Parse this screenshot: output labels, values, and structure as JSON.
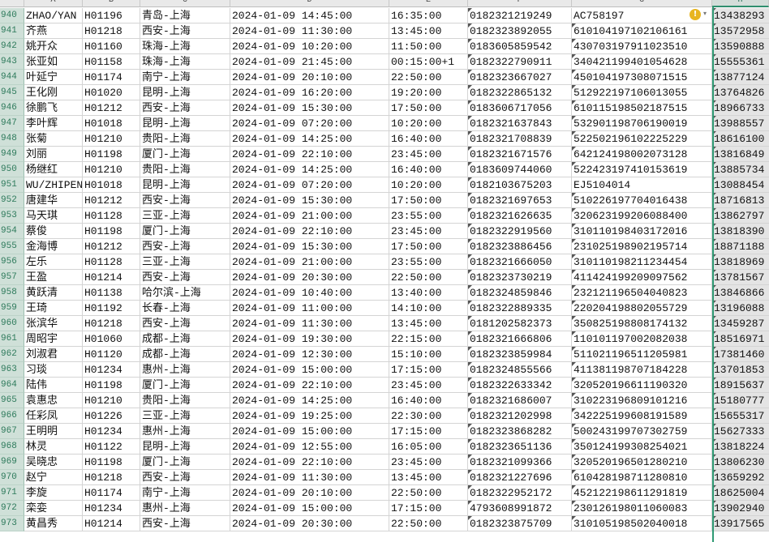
{
  "columns": [
    "A",
    "B",
    "C",
    "D",
    "E",
    "F",
    "G",
    "H"
  ],
  "selected_column": "H",
  "rows": [
    {
      "n": "940",
      "a": "ZHAO/YAN",
      "b": "H01196",
      "c": "青岛-上海",
      "d": "2024-01-09 14:45:00",
      "e": "16:35:00",
      "f": "0182321219249",
      "g": "AC758197",
      "h": "13438293"
    },
    {
      "n": "941",
      "a": "齐燕",
      "b": "H01218",
      "c": "西安-上海",
      "d": "2024-01-09 11:30:00",
      "e": "13:45:00",
      "f": "0182323892055",
      "g": "610104197102106161",
      "h": "13572958"
    },
    {
      "n": "942",
      "a": "姚开众",
      "b": "H01160",
      "c": "珠海-上海",
      "d": "2024-01-09 10:20:00",
      "e": "11:50:00",
      "f": "0183605859542",
      "g": "430703197911023510",
      "h": "13590888"
    },
    {
      "n": "943",
      "a": "张亚如",
      "b": "H01158",
      "c": "珠海-上海",
      "d": "2024-01-09 21:45:00",
      "e": "00:15:00+1",
      "f": "0182322790911",
      "g": "340421199401054628",
      "h": "15555361"
    },
    {
      "n": "944",
      "a": "叶延宁",
      "b": "H01174",
      "c": "南宁-上海",
      "d": "2024-01-09 20:10:00",
      "e": "22:50:00",
      "f": "0182323667027",
      "g": "450104197308071515",
      "h": "13877124"
    },
    {
      "n": "945",
      "a": "王化刚",
      "b": "H01020",
      "c": "昆明-上海",
      "d": "2024-01-09 16:20:00",
      "e": "19:20:00",
      "f": "0182322865132",
      "g": "512922197106013055",
      "h": "13764826"
    },
    {
      "n": "946",
      "a": "徐鹏飞",
      "b": "H01212",
      "c": "西安-上海",
      "d": "2024-01-09 15:30:00",
      "e": "17:50:00",
      "f": "0183606717056",
      "g": "610115198502187515",
      "h": "18966733"
    },
    {
      "n": "947",
      "a": "李叶辉",
      "b": "H01018",
      "c": "昆明-上海",
      "d": "2024-01-09 07:20:00",
      "e": "10:20:00",
      "f": "0182321637843",
      "g": "532901198706190019",
      "h": "13988557"
    },
    {
      "n": "948",
      "a": "张菊",
      "b": "H01210",
      "c": "贵阳-上海",
      "d": "2024-01-09 14:25:00",
      "e": "16:40:00",
      "f": "0182321708839",
      "g": "522502196102225229",
      "h": "18616100"
    },
    {
      "n": "949",
      "a": "刘丽",
      "b": "H01198",
      "c": "厦门-上海",
      "d": "2024-01-09 22:10:00",
      "e": "23:45:00",
      "f": "0182321671576",
      "g": "642124198002073128",
      "h": "13816849"
    },
    {
      "n": "950",
      "a": "杨继红",
      "b": "H01210",
      "c": "贵阳-上海",
      "d": "2024-01-09 14:25:00",
      "e": "16:40:00",
      "f": "0183609744060",
      "g": "522423197410153619",
      "h": "13885734"
    },
    {
      "n": "951",
      "a": "WU/ZHIPEN",
      "b": "H01018",
      "c": "昆明-上海",
      "d": "2024-01-09 07:20:00",
      "e": "10:20:00",
      "f": "0182103675203",
      "g": "EJ5104014",
      "h": "13088454"
    },
    {
      "n": "952",
      "a": "唐建华",
      "b": "H01212",
      "c": "西安-上海",
      "d": "2024-01-09 15:30:00",
      "e": "17:50:00",
      "f": "0182321697653",
      "g": "510226197704016438",
      "h": "18716813"
    },
    {
      "n": "953",
      "a": "马天琪",
      "b": "H01128",
      "c": "三亚-上海",
      "d": "2024-01-09 21:00:00",
      "e": "23:55:00",
      "f": "0182321626635",
      "g": "320623199206088400",
      "h": "13862797"
    },
    {
      "n": "954",
      "a": "蔡俊",
      "b": "H01198",
      "c": "厦门-上海",
      "d": "2024-01-09 22:10:00",
      "e": "23:45:00",
      "f": "0182322919560",
      "g": "310110198403172016",
      "h": "13818390"
    },
    {
      "n": "955",
      "a": "金海博",
      "b": "H01212",
      "c": "西安-上海",
      "d": "2024-01-09 15:30:00",
      "e": "17:50:00",
      "f": "0182323886456",
      "g": "231025198902195714",
      "h": "18871188"
    },
    {
      "n": "956",
      "a": "左乐",
      "b": "H01128",
      "c": "三亚-上海",
      "d": "2024-01-09 21:00:00",
      "e": "23:55:00",
      "f": "0182321666050",
      "g": "310110198211234454",
      "h": "13818969"
    },
    {
      "n": "957",
      "a": "王盈",
      "b": "H01214",
      "c": "西安-上海",
      "d": "2024-01-09 20:30:00",
      "e": "22:50:00",
      "f": "0182323730219",
      "g": "411424199209097562",
      "h": "13781567"
    },
    {
      "n": "958",
      "a": "黄跃清",
      "b": "H01138",
      "c": "哈尔滨-上海",
      "d": "2024-01-09 10:40:00",
      "e": "13:40:00",
      "f": "0182324859846",
      "g": "232121196504040823",
      "h": "13846866"
    },
    {
      "n": "959",
      "a": "王琦",
      "b": "H01192",
      "c": "长春-上海",
      "d": "2024-01-09 11:00:00",
      "e": "14:10:00",
      "f": "0182322889335",
      "g": "220204198802055729",
      "h": "13196088"
    },
    {
      "n": "960",
      "a": "张滨华",
      "b": "H01218",
      "c": "西安-上海",
      "d": "2024-01-09 11:30:00",
      "e": "13:45:00",
      "f": "0181202582373",
      "g": "350825198808174132",
      "h": "13459287"
    },
    {
      "n": "961",
      "a": "周昭宇",
      "b": "H01060",
      "c": "成都-上海",
      "d": "2024-01-09 19:30:00",
      "e": "22:15:00",
      "f": "0182321666806",
      "g": "110101197002082038",
      "h": "18516971"
    },
    {
      "n": "962",
      "a": "刘淑君",
      "b": "H01120",
      "c": "成都-上海",
      "d": "2024-01-09 12:30:00",
      "e": "15:10:00",
      "f": "0182323859984",
      "g": "511021196511205981",
      "h": "17381460"
    },
    {
      "n": "963",
      "a": "习琰",
      "b": "H01234",
      "c": "惠州-上海",
      "d": "2024-01-09 15:00:00",
      "e": "17:15:00",
      "f": "0182324855566",
      "g": "411381198707184228",
      "h": "13701853"
    },
    {
      "n": "964",
      "a": "陆伟",
      "b": "H01198",
      "c": "厦门-上海",
      "d": "2024-01-09 22:10:00",
      "e": "23:45:00",
      "f": "0182322633342",
      "g": "320520196611190320",
      "h": "18915637"
    },
    {
      "n": "965",
      "a": "袁惠忠",
      "b": "H01210",
      "c": "贵阳-上海",
      "d": "2024-01-09 14:25:00",
      "e": "16:40:00",
      "f": "0182321686007",
      "g": "310223196809101216",
      "h": "15180777"
    },
    {
      "n": "966",
      "a": "任彩凤",
      "b": "H01226",
      "c": "三亚-上海",
      "d": "2024-01-09 19:25:00",
      "e": "22:30:00",
      "f": "0182321202998",
      "g": "342225199608191589",
      "h": "15655317"
    },
    {
      "n": "967",
      "a": "王明明",
      "b": "H01234",
      "c": "惠州-上海",
      "d": "2024-01-09 15:00:00",
      "e": "17:15:00",
      "f": "0182323868282",
      "g": "500243199707302759",
      "h": "15627333"
    },
    {
      "n": "968",
      "a": "林灵",
      "b": "H01122",
      "c": "昆明-上海",
      "d": "2024-01-09 12:55:00",
      "e": "16:05:00",
      "f": "0182323651136",
      "g": "350124199308254021",
      "h": "13818224"
    },
    {
      "n": "969",
      "a": "吴晓忠",
      "b": "H01198",
      "c": "厦门-上海",
      "d": "2024-01-09 22:10:00",
      "e": "23:45:00",
      "f": "0182321099366",
      "g": "320520196501280210",
      "h": "13806230"
    },
    {
      "n": "970",
      "a": "赵宁",
      "b": "H01218",
      "c": "西安-上海",
      "d": "2024-01-09 11:30:00",
      "e": "13:45:00",
      "f": "0182321227696",
      "g": "610428198711280810",
      "h": "13659292"
    },
    {
      "n": "971",
      "a": "李旋",
      "b": "H01174",
      "c": "南宁-上海",
      "d": "2024-01-09 20:10:00",
      "e": "22:50:00",
      "f": "0182322952172",
      "g": "452122198611291819",
      "h": "18625004"
    },
    {
      "n": "972",
      "a": "栾娈",
      "b": "H01234",
      "c": "惠州-上海",
      "d": "2024-01-09 15:00:00",
      "e": "17:15:00",
      "f": "4793608991872",
      "g": "230126198011060083",
      "h": "13902940"
    },
    {
      "n": "973",
      "a": "黄昌秀",
      "b": "H01214",
      "c": "西安-上海",
      "d": "2024-01-09 20:30:00",
      "e": "22:50:00",
      "f": "0182323875709",
      "g": "310105198502040018",
      "h": "13917565"
    }
  ],
  "warning_icon": "exclamation-circle-icon",
  "colors": {
    "selection": "#2f9a74",
    "row_header": "#cfe0d8",
    "warning": "#e8b520"
  }
}
